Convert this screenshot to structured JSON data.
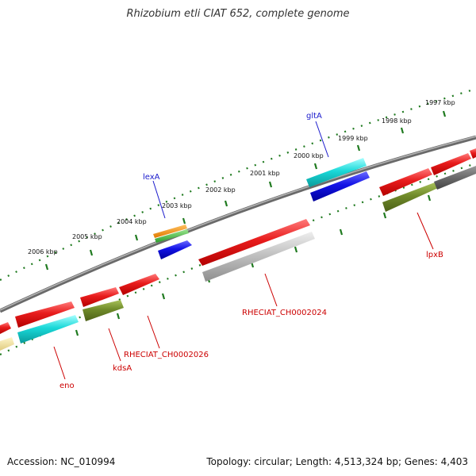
{
  "title": "Rhizobium etli CIAT 652, complete genome",
  "footer": {
    "accession": "Accession: NC_010994",
    "summary": "Topology: circular; Length: 4,513,324 bp; Genes: 4,403"
  },
  "scale_labels": [
    "1997 kbp",
    "1998 kbp",
    "1999 kbp",
    "2000 kbp",
    "2001 kbp",
    "2002 kbp",
    "2003 kbp",
    "2004 kbp",
    "2005 kbp",
    "2006 kbp"
  ],
  "gene_labels": {
    "gltA": "gltA",
    "lexA": "lexA",
    "lpxB": "lpxB",
    "RHECIAT_CH0002024": "RHECIAT_CH0002024",
    "RHECIAT_CH0002026": "RHECIAT_CH0002026",
    "kdsA": "kdsA",
    "eno": "eno"
  },
  "colors": {
    "red": "#e31b1b",
    "cyan": "#1bd6d6",
    "blue": "#1010e0",
    "olive": "#6f8a2a",
    "gray": "#bdbdbd",
    "dark_gray": "#6e6e6e",
    "orange": "#f08a00",
    "green": "#44c23a",
    "yellow": "#f5e6a0",
    "tick": "#1f7a1f"
  }
}
